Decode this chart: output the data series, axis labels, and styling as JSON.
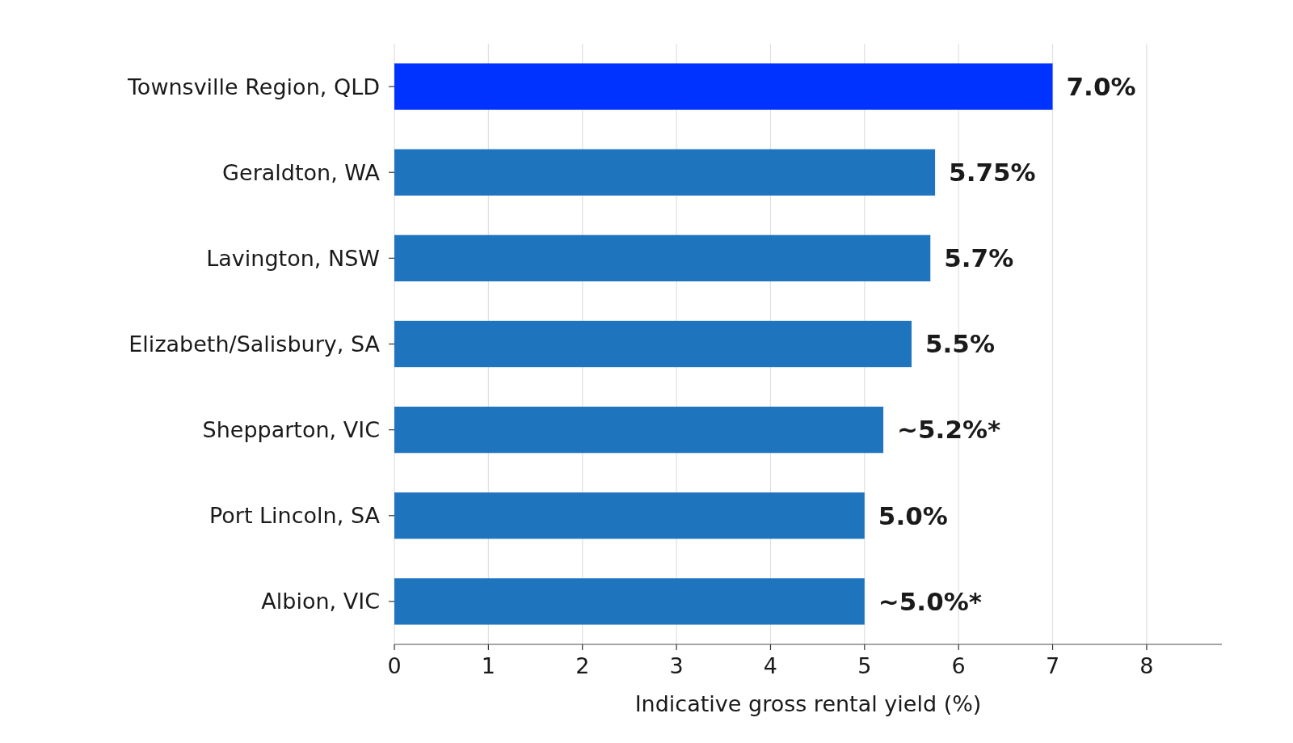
{
  "chart_data": {
    "type": "bar",
    "orientation": "horizontal",
    "xlabel": "Indicative gross rental yield (%)",
    "categories": [
      "Townsville Region, QLD",
      "Geraldton, WA",
      "Lavington, NSW",
      "Elizabeth/Salisbury, SA",
      "Shepparton, VIC",
      "Port Lincoln, SA",
      "Albion, VIC"
    ],
    "values": [
      7.0,
      5.75,
      5.7,
      5.5,
      5.2,
      5.0,
      5.0
    ],
    "colors": [
      "#0033ff",
      "#1f74be",
      "#1f74be",
      "#1f74be",
      "#1f74be",
      "#1f74be",
      "#1f74be"
    ],
    "value_labels": [
      "7.0%",
      "5.75%",
      "5.7%",
      "5.5%",
      "~5.2%*",
      "5.0%",
      "~5.0%*"
    ],
    "xlim": [
      0,
      8.8
    ],
    "xticks": [
      0,
      1,
      2,
      3,
      4,
      5,
      6,
      7,
      8
    ],
    "grid": "x"
  }
}
